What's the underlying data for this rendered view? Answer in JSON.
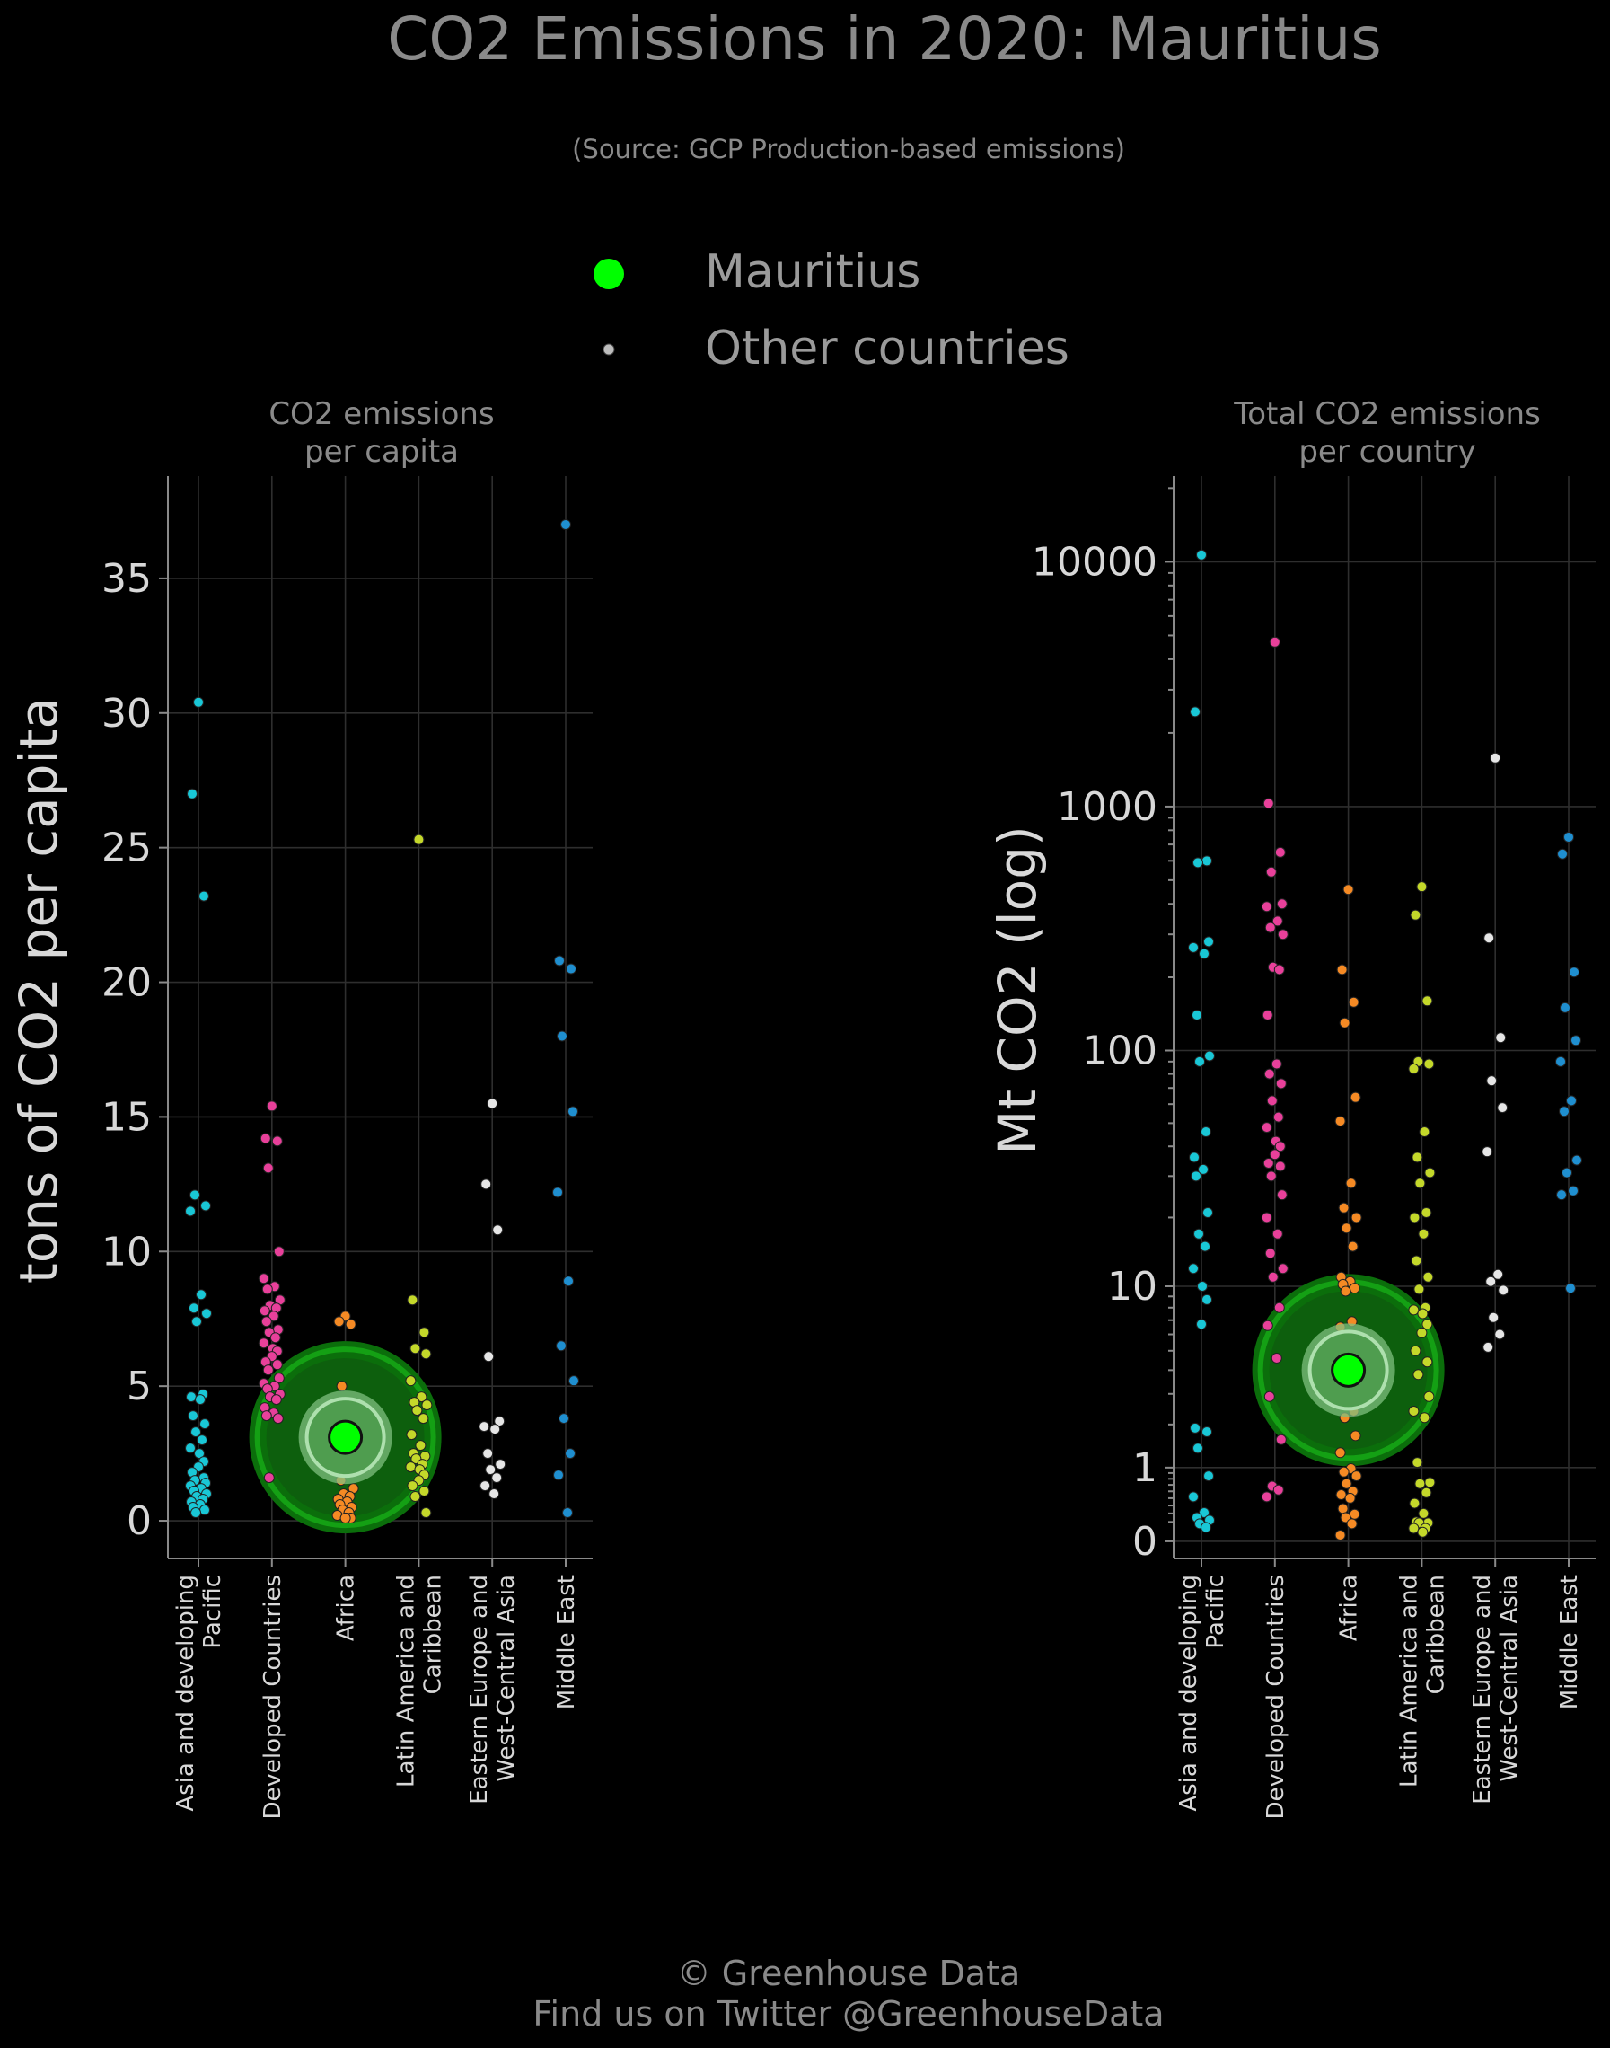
{
  "title": "CO2 Emissions in 2020: Mauritius",
  "subtitle": "(Source: GCP Production-based emissions)",
  "legend": {
    "highlight_label": "Mauritius",
    "others_label": "Other countries",
    "highlight_color": "#00ff00",
    "others_color": "#bdbdbd"
  },
  "footer": {
    "line1": "© Greenhouse Data",
    "line2": "Find us on Twitter @GreenhouseData"
  },
  "region_colors": [
    "#19c7d6",
    "#e8409a",
    "#f58a24",
    "#c4d82a",
    "#e6e6e6",
    "#1f8fd0"
  ],
  "chart_data": [
    {
      "type": "scatter",
      "title": "CO2 emissions\nper capita",
      "ylabel": "tons of CO2 per capita",
      "scale": "linear",
      "ylim": [
        -1.4,
        38.8
      ],
      "yticks": [
        0,
        5,
        10,
        15,
        20,
        25,
        30,
        35
      ],
      "ytick_labels": [
        "0",
        "5",
        "10",
        "15",
        "20",
        "25",
        "30",
        "35"
      ],
      "grid": true,
      "categories": [
        "Asia and developing\nPacific",
        "Developed Countries",
        "Africa",
        "Latin America and\nCaribbean",
        "Eastern Europe and\nWest-Central Asia",
        "Middle East"
      ],
      "highlight": {
        "name": "Mauritius",
        "category": "Africa",
        "value": 3.1
      },
      "series": [
        {
          "category": "Asia and developing\nPacific",
          "values": [
            30.4,
            27.0,
            23.2,
            12.1,
            11.7,
            11.5,
            8.4,
            7.9,
            7.7,
            7.4,
            4.7,
            4.6,
            4.5,
            3.9,
            3.6,
            3.3,
            3.0,
            2.7,
            2.5,
            2.2,
            2.0,
            1.8,
            1.6,
            1.5,
            1.4,
            1.3,
            1.2,
            1.1,
            1.0,
            0.9,
            0.8,
            0.7,
            0.6,
            0.5,
            0.4,
            0.3
          ]
        },
        {
          "category": "Developed Countries",
          "values": [
            15.4,
            14.2,
            14.1,
            13.1,
            10.0,
            9.0,
            8.7,
            8.6,
            8.2,
            8.0,
            7.9,
            7.8,
            7.6,
            7.4,
            7.1,
            7.0,
            6.8,
            6.6,
            6.4,
            6.3,
            6.1,
            5.9,
            5.8,
            5.6,
            5.3,
            5.1,
            5.0,
            4.9,
            4.7,
            4.6,
            4.5,
            4.2,
            4.0,
            3.9,
            3.8,
            1.6
          ]
        },
        {
          "category": "Africa",
          "values": [
            7.6,
            7.4,
            7.3,
            5.0,
            3.1,
            2.2,
            1.9,
            1.5,
            1.2,
            1.0,
            0.9,
            0.8,
            0.7,
            0.6,
            0.5,
            0.4,
            0.3,
            0.2,
            0.1,
            0.1,
            0.1
          ]
        },
        {
          "category": "Latin America and\nCaribbean",
          "values": [
            25.3,
            8.2,
            7.0,
            6.4,
            6.2,
            5.2,
            4.6,
            4.4,
            4.3,
            4.1,
            3.8,
            3.2,
            2.8,
            2.5,
            2.4,
            2.3,
            2.1,
            2.0,
            1.9,
            1.7,
            1.5,
            1.3,
            1.1,
            0.9,
            0.3
          ]
        },
        {
          "category": "Eastern Europe and\nWest-Central Asia",
          "values": [
            15.5,
            12.5,
            10.8,
            6.1,
            3.7,
            3.5,
            3.4,
            2.5,
            2.1,
            1.9,
            1.6,
            1.3,
            1.0
          ]
        },
        {
          "category": "Middle East",
          "values": [
            37.0,
            20.8,
            20.5,
            18.0,
            15.2,
            12.2,
            8.9,
            6.5,
            5.2,
            3.8,
            2.5,
            1.7,
            0.3
          ]
        }
      ]
    },
    {
      "type": "scatter",
      "title": "Total CO2 emissions\nper country",
      "ylabel": "Mt CO2 (log)",
      "scale": "log1p",
      "ylim": [
        -0.07,
        4.35
      ],
      "yticks": [
        0,
        1,
        10,
        100,
        1000,
        10000
      ],
      "ytick_labels": [
        "0",
        "1",
        "10",
        "100",
        "1000",
        "10000"
      ],
      "grid": true,
      "categories": [
        "Asia and developing\nPacific",
        "Developed Countries",
        "Africa",
        "Latin America and\nCaribbean",
        "Eastern Europe and\nWest-Central Asia",
        "Middle East"
      ],
      "highlight": {
        "name": "Mauritius",
        "category": "Africa",
        "value": 4.0
      },
      "series": [
        {
          "category": "Asia and developing\nPacific",
          "values": [
            10668,
            2440,
            600,
            590,
            280,
            265,
            250,
            140,
            95,
            90,
            46,
            36,
            32,
            30,
            21,
            17,
            15,
            12,
            10,
            8.7,
            6.7,
            1.9,
            1.8,
            1.4,
            0.85,
            0.52,
            0.31,
            0.25,
            0.22,
            0.18,
            0.14
          ]
        },
        {
          "category": "Developed Countries",
          "values": [
            4700,
            1030,
            650,
            540,
            400,
            390,
            340,
            320,
            300,
            220,
            215,
            140,
            88,
            80,
            73,
            62,
            53,
            48,
            42,
            40,
            37,
            34,
            33,
            30,
            25,
            20,
            17,
            14,
            12,
            11,
            8,
            6.6,
            4.6,
            2.9,
            1.6,
            0.68,
            0.62,
            0.52
          ]
        },
        {
          "category": "Africa",
          "values": [
            458,
            215,
            158,
            130,
            64,
            51,
            28,
            22,
            20,
            18,
            15,
            11,
            10.5,
            10.2,
            9.8,
            9.5,
            6.9,
            6.5,
            5.8,
            4.4,
            4.0,
            3.2,
            2.4,
            2.2,
            1.7,
            1.3,
            0.98,
            0.92,
            0.85,
            0.72,
            0.6,
            0.55,
            0.5,
            0.36,
            0.29,
            0.25,
            0.18,
            0.06
          ]
        },
        {
          "category": "Latin America and\nCaribbean",
          "values": [
            470,
            360,
            160,
            90,
            88,
            84,
            46,
            36,
            31,
            28,
            21,
            20,
            17,
            13,
            11,
            9.7,
            8,
            7.8,
            7.5,
            6.7,
            6.1,
            5,
            4.4,
            3.8,
            2.9,
            2.4,
            2.2,
            1.1,
            0.74,
            0.72,
            0.58,
            0.43,
            0.3,
            0.2,
            0.19,
            0.19,
            0.13,
            0.13,
            0.09
          ]
        },
        {
          "category": "Eastern Europe and\nWest-Central Asia",
          "values": [
            1580,
            290,
            113,
            75,
            58,
            38,
            11.3,
            10.5,
            9.6,
            7.2,
            6,
            5.2
          ]
        },
        {
          "category": "Middle East",
          "values": [
            750,
            640,
            210,
            150,
            110,
            90,
            62,
            56,
            35,
            31,
            26,
            25,
            9.8
          ]
        }
      ]
    }
  ]
}
